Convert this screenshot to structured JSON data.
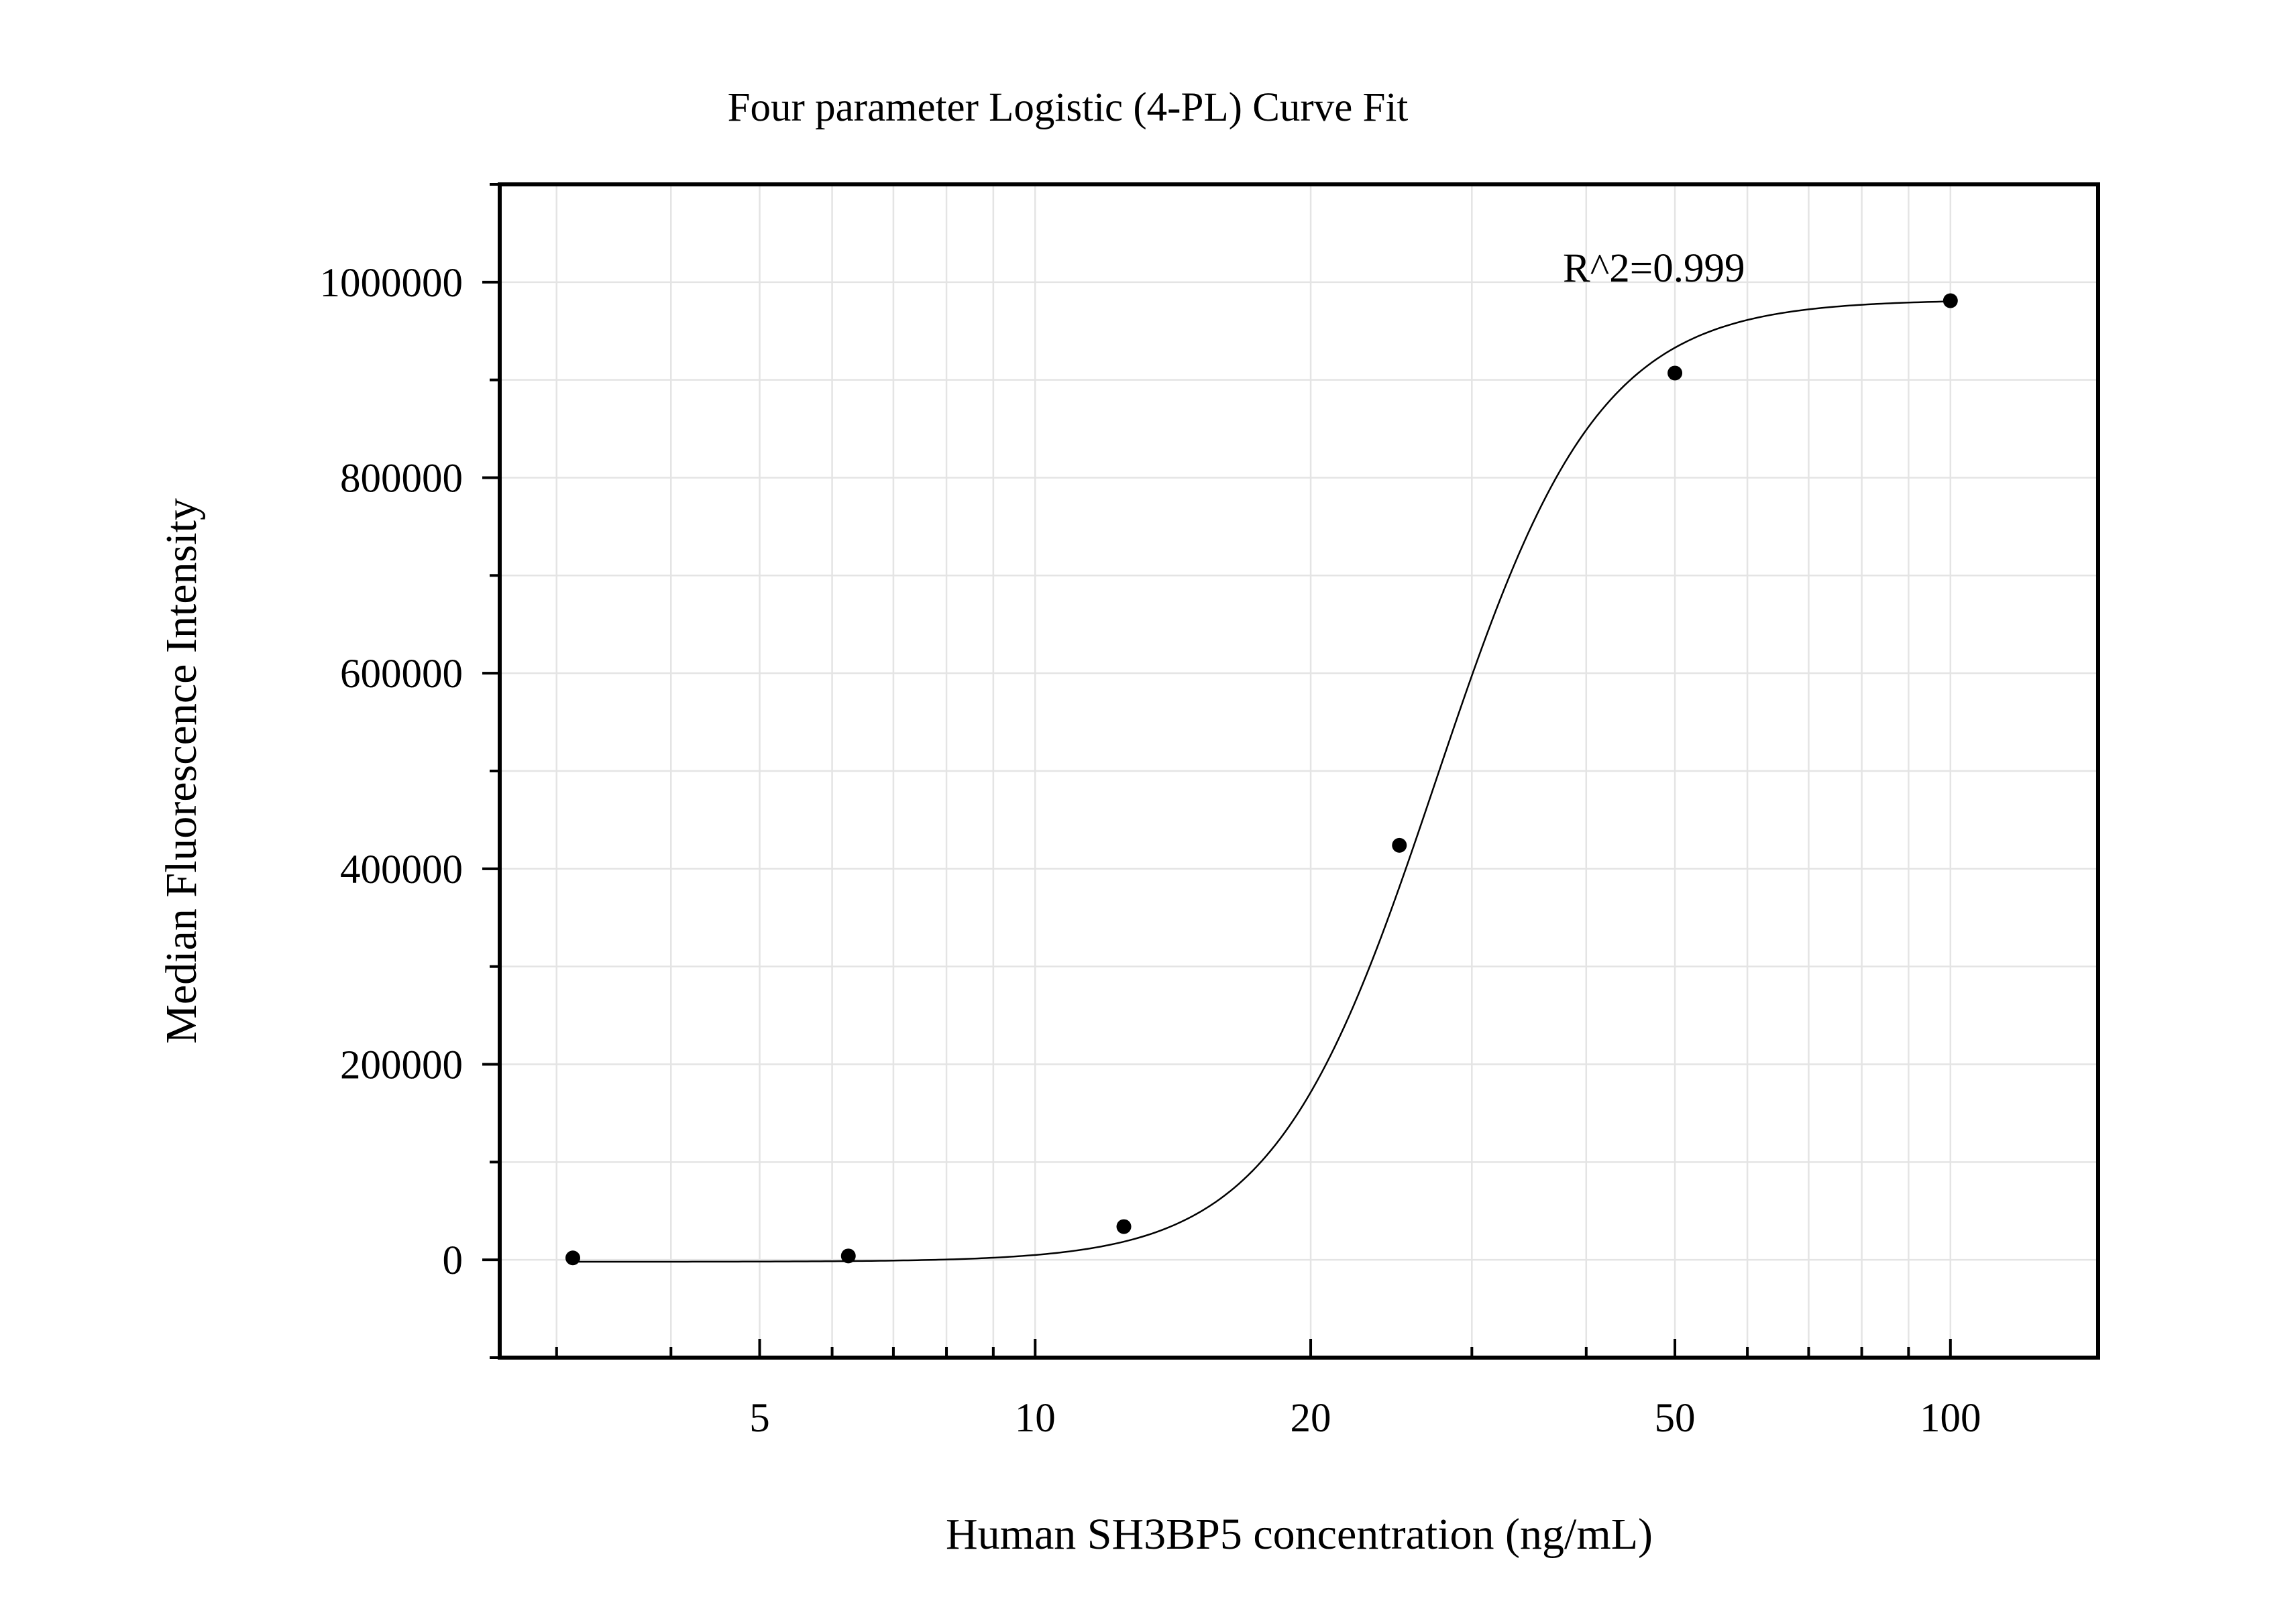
{
  "chart_data": {
    "type": "scatter",
    "title": "Four parameter Logistic (4-PL) Curve Fit",
    "xlabel": "Human SH3BP5 concentration (ng/mL)",
    "ylabel": "Median Fluorescence Intensity",
    "x_scale": "log",
    "xlim": [
      2.6,
      145
    ],
    "ylim": [
      -100000,
      1100000
    ],
    "x_ticks": [
      5,
      10,
      20,
      50,
      100
    ],
    "x_tick_labels": [
      "5",
      "10",
      "20",
      "50",
      "100"
    ],
    "y_ticks": [
      0,
      200000,
      400000,
      600000,
      800000,
      1000000
    ],
    "y_tick_labels": [
      "0",
      "200000",
      "400000",
      "600000",
      "800000",
      "1000000"
    ],
    "grid": true,
    "annotation": "R^2=0.999",
    "series": [
      {
        "points": [
          {
            "x": 3.125,
            "y": 2000
          },
          {
            "x": 6.25,
            "y": 4000
          },
          {
            "x": 12.5,
            "y": 34000
          },
          {
            "x": 25,
            "y": 424000
          },
          {
            "x": 50,
            "y": 907000
          },
          {
            "x": 100,
            "y": 981000
          }
        ]
      }
    ],
    "fit": {
      "model": "4PL",
      "bottom": -2000,
      "top": 982000,
      "ec50": 27.4,
      "hill": 4.9
    },
    "colors": {
      "points": "#000000",
      "curve": "#000000",
      "grid": "#e4e4e4"
    }
  }
}
